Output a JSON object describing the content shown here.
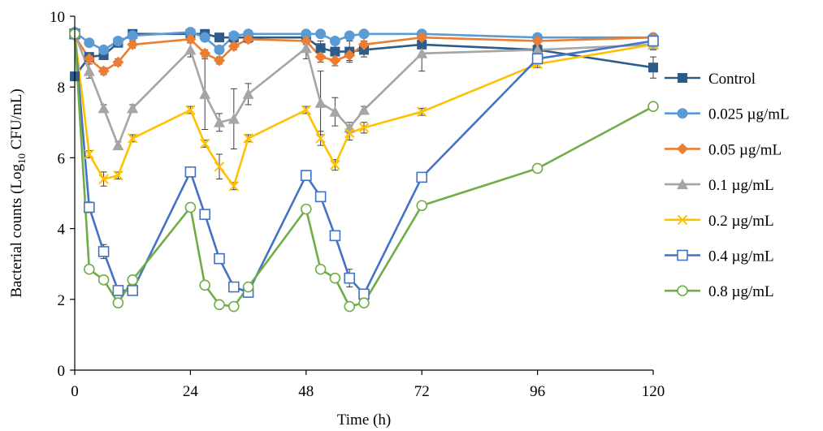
{
  "chart_data": {
    "type": "line",
    "title": "",
    "xlabel": "Time (h)",
    "ylabel": "Bacterial counts (Log10 CFU/mL)",
    "ylabel_parts": [
      "Bacterial counts (Log",
      "10",
      " CFU/mL)"
    ],
    "xlim": [
      0,
      120
    ],
    "ylim": [
      0,
      10
    ],
    "xticks": [
      0,
      24,
      48,
      72,
      96,
      120
    ],
    "yticks": [
      0,
      2,
      4,
      6,
      8,
      10
    ],
    "legend_position": "right",
    "grid": false,
    "series": [
      {
        "name": "Control",
        "color": "#2e5c8a",
        "marker": "square-filled",
        "x": [
          0,
          3,
          6,
          9,
          12,
          24,
          27,
          30,
          33,
          36,
          48,
          51,
          54,
          57,
          60,
          72,
          96,
          120
        ],
        "y": [
          8.3,
          8.85,
          8.9,
          9.25,
          9.5,
          9.5,
          9.5,
          9.4,
          9.4,
          9.4,
          9.4,
          9.1,
          9.0,
          9.0,
          9.05,
          9.2,
          9.05,
          8.55
        ],
        "err": [
          0,
          0.1,
          0.1,
          0.1,
          0.1,
          0.1,
          0.1,
          0.1,
          0.1,
          0.1,
          0.1,
          0.2,
          0.2,
          0.3,
          0.2,
          0.1,
          0.15,
          0.3
        ]
      },
      {
        "name": "0.025 µg/mL",
        "color": "#5b9bd5",
        "marker": "circle-filled",
        "x": [
          0,
          3,
          6,
          9,
          12,
          24,
          27,
          30,
          33,
          36,
          48,
          51,
          54,
          57,
          60,
          72,
          96,
          120
        ],
        "y": [
          9.55,
          9.25,
          9.05,
          9.3,
          9.45,
          9.55,
          9.4,
          9.05,
          9.45,
          9.5,
          9.5,
          9.5,
          9.3,
          9.45,
          9.5,
          9.5,
          9.4,
          9.4
        ],
        "err": [
          0,
          0.1,
          0.1,
          0.1,
          0.1,
          0.1,
          0.1,
          0.1,
          0.1,
          0.1,
          0.1,
          0.1,
          0.1,
          0.1,
          0.1,
          0.1,
          0.1,
          0.1
        ]
      },
      {
        "name": "0.05 µg/mL",
        "color": "#ed7d31",
        "marker": "diamond-filled",
        "x": [
          0,
          3,
          6,
          9,
          12,
          24,
          27,
          30,
          33,
          36,
          48,
          51,
          54,
          57,
          60,
          72,
          96,
          120
        ],
        "y": [
          9.45,
          8.8,
          8.45,
          8.7,
          9.2,
          9.35,
          8.95,
          8.75,
          9.15,
          9.35,
          9.3,
          8.85,
          8.75,
          8.9,
          9.2,
          9.4,
          9.3,
          9.4
        ],
        "err": [
          0,
          0.1,
          0.1,
          0.1,
          0.1,
          0.1,
          0.1,
          0.1,
          0.1,
          0.1,
          0.1,
          0.15,
          0.15,
          0.15,
          0.1,
          0.1,
          0.1,
          0.1
        ]
      },
      {
        "name": "0.1 µg/mL",
        "color": "#a5a5a5",
        "marker": "triangle-filled",
        "x": [
          0,
          3,
          6,
          9,
          12,
          24,
          27,
          30,
          33,
          36,
          48,
          51,
          54,
          57,
          60,
          72,
          96,
          120
        ],
        "y": [
          9.5,
          8.45,
          7.4,
          6.35,
          7.4,
          9.05,
          7.8,
          7.0,
          7.1,
          7.8,
          9.1,
          7.55,
          7.3,
          6.85,
          7.35,
          8.95,
          9.05,
          9.2
        ],
        "err": [
          0,
          0.2,
          0.1,
          0.1,
          0.1,
          0.2,
          1.0,
          0.25,
          0.85,
          0.3,
          0.3,
          0.9,
          0.4,
          0.15,
          0.1,
          0.5,
          0.2,
          0.15
        ]
      },
      {
        "name": "0.2 µg/mL",
        "color": "#ffc000",
        "marker": "x",
        "x": [
          0,
          3,
          6,
          9,
          12,
          24,
          27,
          30,
          33,
          36,
          48,
          51,
          54,
          57,
          60,
          72,
          96,
          120
        ],
        "y": [
          9.5,
          6.1,
          5.4,
          5.5,
          6.55,
          7.35,
          6.4,
          5.75,
          5.2,
          6.55,
          7.35,
          6.55,
          5.8,
          6.7,
          6.85,
          7.3,
          8.65,
          9.2
        ],
        "err": [
          0,
          0.1,
          0.2,
          0.1,
          0.1,
          0.1,
          0.1,
          0.35,
          0.1,
          0.1,
          0.1,
          0.2,
          0.15,
          0.2,
          0.15,
          0.1,
          0.1,
          0.1
        ]
      },
      {
        "name": "0.4 µg/mL",
        "color": "#4472c4",
        "marker": "square-open",
        "x": [
          0,
          3,
          6,
          9,
          12,
          24,
          27,
          30,
          33,
          36,
          48,
          51,
          54,
          57,
          60,
          72,
          96,
          120
        ],
        "y": [
          9.5,
          4.6,
          3.35,
          2.25,
          2.25,
          5.6,
          4.4,
          3.15,
          2.35,
          2.2,
          5.5,
          4.9,
          3.8,
          2.6,
          2.15,
          5.45,
          8.8,
          9.3
        ],
        "err": [
          0,
          0.15,
          0.2,
          0.1,
          0.1,
          0.1,
          0.1,
          0.1,
          0.1,
          0.1,
          0.1,
          0.1,
          0.1,
          0.25,
          0.1,
          0.1,
          0.1,
          0.1
        ]
      },
      {
        "name": "0.8 µg/mL",
        "color": "#70ad47",
        "marker": "circle-open",
        "x": [
          0,
          3,
          6,
          9,
          12,
          24,
          27,
          30,
          33,
          36,
          48,
          51,
          54,
          57,
          60,
          72,
          96,
          120
        ],
        "y": [
          9.5,
          2.85,
          2.55,
          1.9,
          2.55,
          4.6,
          2.4,
          1.85,
          1.8,
          2.35,
          4.55,
          2.85,
          2.6,
          1.8,
          1.9,
          4.65,
          5.7,
          7.45
        ],
        "err": [
          0,
          0.1,
          0.1,
          0.1,
          0.1,
          0.1,
          0.1,
          0.1,
          0.1,
          0.1,
          0.1,
          0.1,
          0.1,
          0.1,
          0.1,
          0.1,
          0.1,
          0.1
        ]
      }
    ]
  }
}
